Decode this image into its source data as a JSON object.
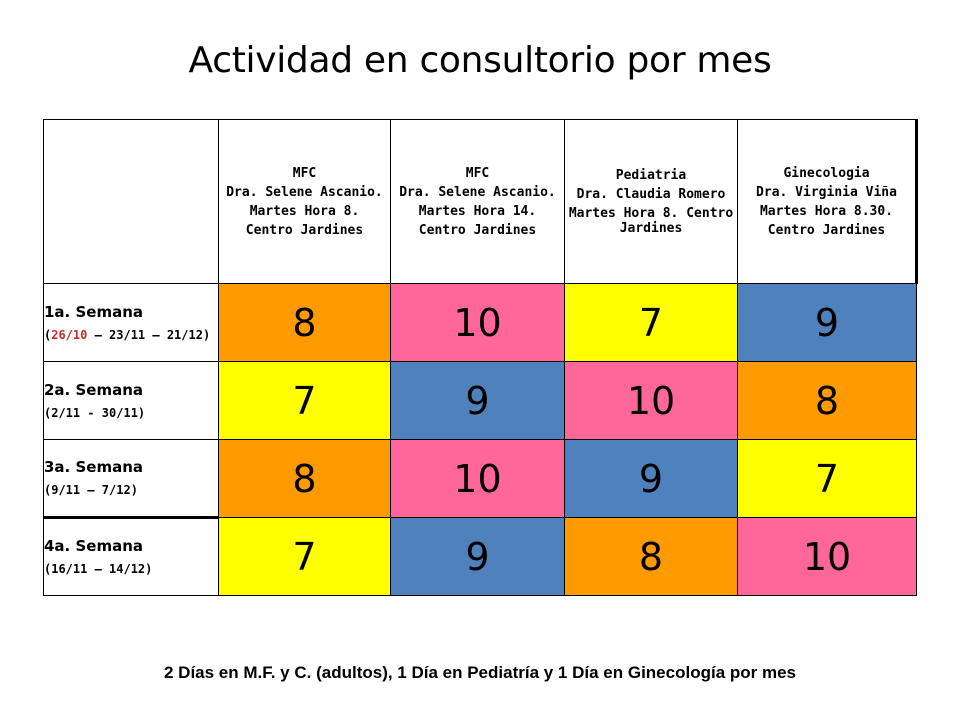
{
  "title": "Actividad en consultorio por mes",
  "columns": [
    {
      "lines": [
        "MFC",
        "Dra. Selene Ascanio.",
        "Martes Hora 8.",
        "Centro Jardines"
      ]
    },
    {
      "lines": [
        "MFC",
        "Dra. Selene Ascanio.",
        "Martes Hora 14.",
        "Centro Jardines"
      ]
    },
    {
      "lines": [
        "Pediatria",
        "Dra. Claudia Romero",
        "Martes Hora 8. Centro Jardines"
      ]
    },
    {
      "lines": [
        "Ginecologia",
        "Dra. Virginia Viña",
        "Martes Hora 8.30.",
        "Centro Jardines"
      ]
    }
  ],
  "rows": [
    {
      "week": "1a. Semana",
      "range_open": "(",
      "range_red": "26/10",
      "range_rest": " – 23/11 – 21/12)",
      "values": [
        "8",
        "10",
        "7",
        "9"
      ],
      "colors": [
        "#ff9a00",
        "#ff6699",
        "#ffff00",
        "#4f81bd"
      ]
    },
    {
      "week": "2a. Semana",
      "range_open": "",
      "range_red": "",
      "range_rest": "(2/11 - 30/11)",
      "values": [
        "7",
        "9",
        "10",
        "8"
      ],
      "colors": [
        "#ffff00",
        "#4f81bd",
        "#ff6699",
        "#ff9a00"
      ]
    },
    {
      "week": "3a. Semana",
      "range_open": "",
      "range_red": "",
      "range_rest": "(9/11 – 7/12)",
      "values": [
        "8",
        "10",
        "9",
        "7"
      ],
      "colors": [
        "#ff9a00",
        "#ff6699",
        "#4f81bd",
        "#ffff00"
      ]
    },
    {
      "week": "4a. Semana",
      "range_open": "",
      "range_red": "",
      "range_rest": "(16/11 – 14/12)",
      "values": [
        "7",
        "9",
        "8",
        "10"
      ],
      "colors": [
        "#ffff00",
        "#4f81bd",
        "#ff9a00",
        "#ff6699"
      ]
    }
  ],
  "footer": "2 Días en M.F. y C. (adultos), 1 Día en Pediatría y 1 Día en Ginecología por mes"
}
